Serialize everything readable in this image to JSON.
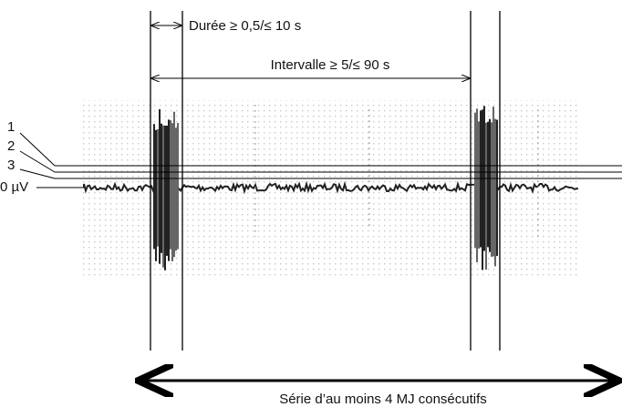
{
  "annotations": {
    "duration": "Durée ≥ 0,5/≤ 10 s",
    "interval": "Intervalle ≥ 5/≤ 90 s",
    "series": "Série d’au moins 4 MJ consécutifs"
  },
  "levels": [
    "1",
    "2",
    "3",
    "0 µV"
  ]
}
